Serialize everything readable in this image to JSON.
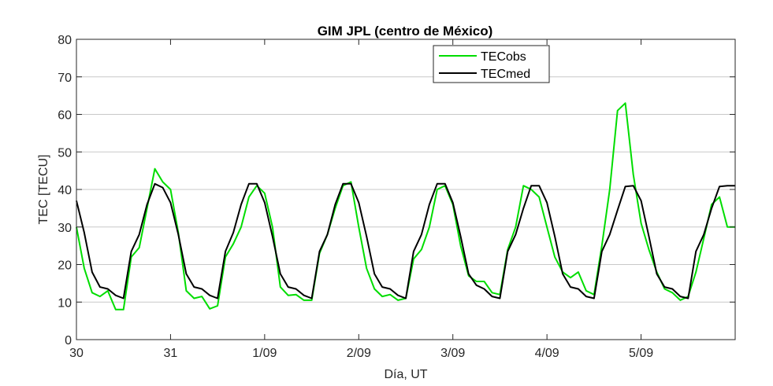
{
  "chart_data": {
    "type": "line",
    "title": "GIM JPL (centro de México)",
    "xlabel": "Día, UT",
    "ylabel": "TEC [TECU]",
    "xlim": [
      0,
      7
    ],
    "ylim": [
      0,
      80
    ],
    "yticks": [
      0,
      10,
      20,
      30,
      40,
      50,
      60,
      70,
      80
    ],
    "xticks": [
      0,
      1,
      2,
      3,
      4,
      5,
      6
    ],
    "xtick_labels": [
      "30",
      "31",
      "1/09",
      "2/09",
      "3/09",
      "4/09",
      "5/09"
    ],
    "grid": "horizontal",
    "legend_position": "top-center",
    "x": [
      0.0,
      0.083,
      0.167,
      0.25,
      0.333,
      0.417,
      0.5,
      0.583,
      0.667,
      0.75,
      0.833,
      0.917,
      1.0,
      1.083,
      1.167,
      1.25,
      1.333,
      1.417,
      1.5,
      1.583,
      1.667,
      1.75,
      1.833,
      1.917,
      2.0,
      2.083,
      2.167,
      2.25,
      2.333,
      2.417,
      2.5,
      2.583,
      2.667,
      2.75,
      2.833,
      2.917,
      3.0,
      3.083,
      3.167,
      3.25,
      3.333,
      3.417,
      3.5,
      3.583,
      3.667,
      3.75,
      3.833,
      3.917,
      4.0,
      4.083,
      4.167,
      4.25,
      4.333,
      4.417,
      4.5,
      4.583,
      4.667,
      4.75,
      4.833,
      4.917,
      5.0,
      5.083,
      5.167,
      5.25,
      5.333,
      5.417,
      5.5,
      5.583,
      5.667,
      5.75,
      5.833,
      5.917,
      6.0,
      6.083,
      6.167,
      6.25,
      6.333,
      6.417,
      6.5,
      6.583,
      6.667,
      6.75,
      6.833,
      6.917,
      7.0
    ],
    "series": [
      {
        "name": "TECobs",
        "color": "#00dd00",
        "values": [
          30,
          19,
          12.5,
          11.5,
          13,
          8,
          8,
          22,
          24.5,
          35,
          45.5,
          42,
          40,
          28.5,
          13,
          11,
          11.5,
          8.2,
          9,
          22,
          25.5,
          30,
          38,
          41,
          39,
          30,
          14,
          11.8,
          12,
          10.5,
          10.5,
          23,
          28,
          35,
          41,
          42,
          30,
          19,
          13.5,
          11.5,
          12,
          10.5,
          11,
          21.5,
          24,
          30,
          40,
          41,
          36,
          25,
          17,
          15.5,
          15.5,
          12.5,
          12,
          24,
          30,
          41,
          40,
          38,
          30,
          22,
          18,
          16.5,
          18,
          13,
          12,
          25,
          40,
          61,
          63,
          44,
          31,
          24,
          18,
          13.5,
          12.5,
          10.5,
          11.5,
          18,
          27,
          36,
          38,
          30,
          30
        ]
      },
      {
        "name": "TECmed",
        "color": "#000000",
        "values": [
          37,
          28.5,
          18,
          14,
          13.5,
          11.8,
          11,
          23.5,
          28,
          36,
          41.5,
          40.5,
          36.5,
          28,
          17.5,
          14,
          13.5,
          11.8,
          11,
          23.5,
          28.5,
          36,
          41.5,
          41.5,
          36.5,
          27.5,
          17.5,
          14,
          13.5,
          11.8,
          11,
          23.5,
          28,
          36,
          41.5,
          41.5,
          36.5,
          27.5,
          17.5,
          14,
          13.5,
          11.8,
          11,
          23.5,
          28,
          36,
          41.5,
          41.5,
          36.5,
          27.5,
          17.5,
          14.5,
          13.5,
          11.5,
          11,
          23.5,
          28,
          35,
          41,
          41,
          36.5,
          27.5,
          17.5,
          14,
          13.5,
          11.5,
          11,
          23.5,
          28,
          34.5,
          40.8,
          41,
          37,
          27.5,
          17.5,
          14,
          13.5,
          11.5,
          11,
          23.5,
          28,
          35,
          40.8,
          41,
          41
        ]
      }
    ]
  }
}
